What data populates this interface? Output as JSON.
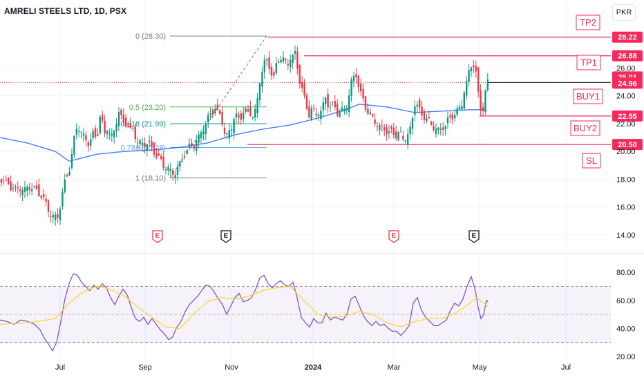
{
  "header": {
    "title": "AMRELI STEELS LTD, 1D, PSX",
    "currency": "PKR"
  },
  "chart_data": {
    "type": "candlestick",
    "price_axis": {
      "ticks": [
        "14.00",
        "16.00",
        "18.00",
        "20.00",
        "22.00",
        "24.00",
        "26.00"
      ],
      "ylim": [
        13.4,
        29.4
      ]
    },
    "rsi_axis": {
      "ticks": [
        "20.00",
        "40.00",
        "60.00",
        "80.00"
      ],
      "ylim": [
        17,
        88
      ],
      "bands": [
        30,
        50,
        70
      ]
    },
    "x_axis": {
      "ticks": [
        "Jul",
        "Sep",
        "Nov",
        "2024",
        "Mar",
        "May",
        "Jul"
      ]
    },
    "price_path": [
      [
        0,
        18.1
      ],
      [
        8,
        17.7
      ],
      [
        18,
        17.4
      ],
      [
        24,
        17.2
      ],
      [
        30,
        17.4
      ],
      [
        36,
        17.2
      ],
      [
        44,
        17.5
      ],
      [
        52,
        17.2
      ],
      [
        60,
        16.8
      ],
      [
        66,
        16.3
      ],
      [
        72,
        15.6
      ],
      [
        78,
        15.2
      ],
      [
        84,
        15.4
      ],
      [
        88,
        16.3
      ],
      [
        92,
        17.4
      ],
      [
        96,
        18.2
      ],
      [
        100,
        18.6
      ],
      [
        104,
        19.7
      ],
      [
        108,
        21.1
      ],
      [
        112,
        22.0
      ],
      [
        116,
        21.5
      ],
      [
        120,
        21.1
      ],
      [
        124,
        20.9
      ],
      [
        128,
        20.6
      ],
      [
        132,
        20.9
      ],
      [
        136,
        21.4
      ],
      [
        140,
        20.7
      ],
      [
        144,
        22.6
      ],
      [
        148,
        22.0
      ],
      [
        152,
        21.2
      ],
      [
        156,
        21.9
      ],
      [
        160,
        20.9
      ],
      [
        164,
        21.2
      ],
      [
        168,
        22.1
      ],
      [
        172,
        22.9
      ],
      [
        176,
        22.3
      ],
      [
        180,
        21.9
      ],
      [
        184,
        22.1
      ],
      [
        188,
        21.4
      ],
      [
        192,
        21.6
      ],
      [
        196,
        21.1
      ],
      [
        200,
        20.6
      ],
      [
        204,
        20.6
      ],
      [
        208,
        20.4
      ],
      [
        212,
        20.7
      ],
      [
        216,
        20.6
      ],
      [
        220,
        20.1
      ],
      [
        224,
        19.9
      ],
      [
        228,
        19.6
      ],
      [
        232,
        19.4
      ],
      [
        236,
        19.0
      ],
      [
        240,
        18.9
      ],
      [
        244,
        18.7
      ],
      [
        248,
        18.5
      ],
      [
        252,
        18.4
      ],
      [
        256,
        18.7
      ],
      [
        260,
        19.0
      ],
      [
        264,
        19.6
      ],
      [
        268,
        19.9
      ],
      [
        272,
        20.1
      ],
      [
        276,
        20.5
      ],
      [
        280,
        20.4
      ],
      [
        284,
        20.7
      ],
      [
        288,
        21.0
      ],
      [
        292,
        21.5
      ],
      [
        296,
        21.8
      ],
      [
        300,
        22.2
      ],
      [
        304,
        22.7
      ],
      [
        308,
        22.9
      ],
      [
        312,
        23.1
      ],
      [
        316,
        22.6
      ],
      [
        320,
        22.7
      ],
      [
        324,
        21.4
      ],
      [
        328,
        21.0
      ],
      [
        332,
        21.5
      ],
      [
        336,
        21.9
      ],
      [
        340,
        22.7
      ],
      [
        344,
        22.3
      ],
      [
        348,
        22.4
      ],
      [
        352,
        22.9
      ],
      [
        356,
        22.6
      ],
      [
        360,
        23.0
      ],
      [
        364,
        22.6
      ],
      [
        368,
        22.6
      ],
      [
        372,
        23.4
      ],
      [
        376,
        25.1
      ],
      [
        380,
        26.0
      ],
      [
        384,
        26.6
      ],
      [
        388,
        26.3
      ],
      [
        392,
        25.8
      ],
      [
        396,
        25.2
      ],
      [
        400,
        26.2
      ],
      [
        404,
        26.6
      ],
      [
        408,
        26.9
      ],
      [
        412,
        26.4
      ],
      [
        416,
        26.2
      ],
      [
        420,
        26.8
      ],
      [
        424,
        26.9
      ],
      [
        428,
        27.0
      ],
      [
        432,
        25.4
      ],
      [
        436,
        24.8
      ],
      [
        440,
        23.9
      ],
      [
        444,
        23.1
      ],
      [
        448,
        22.6
      ],
      [
        452,
        23.3
      ],
      [
        456,
        22.4
      ],
      [
        460,
        22.9
      ],
      [
        464,
        22.9
      ],
      [
        468,
        23.3
      ],
      [
        472,
        24.0
      ],
      [
        476,
        23.1
      ],
      [
        480,
        23.4
      ],
      [
        484,
        23.2
      ],
      [
        488,
        22.8
      ],
      [
        492,
        23.0
      ],
      [
        496,
        22.9
      ],
      [
        500,
        23.0
      ],
      [
        504,
        23.8
      ],
      [
        508,
        24.9
      ],
      [
        512,
        25.3
      ],
      [
        516,
        25.6
      ],
      [
        520,
        24.4
      ],
      [
        524,
        23.9
      ],
      [
        528,
        23.3
      ],
      [
        532,
        22.9
      ],
      [
        536,
        22.6
      ],
      [
        540,
        22.3
      ],
      [
        544,
        22.1
      ],
      [
        548,
        21.8
      ],
      [
        552,
        21.6
      ],
      [
        556,
        21.7
      ],
      [
        560,
        21.4
      ],
      [
        564,
        21.3
      ],
      [
        568,
        21.5
      ],
      [
        572,
        21.1
      ],
      [
        576,
        21.3
      ],
      [
        580,
        21.2
      ],
      [
        584,
        20.9
      ],
      [
        588,
        21.1
      ],
      [
        592,
        21.2
      ],
      [
        596,
        22.1
      ],
      [
        600,
        23.5
      ],
      [
        604,
        23.3
      ],
      [
        608,
        22.8
      ],
      [
        612,
        22.5
      ],
      [
        616,
        22.5
      ],
      [
        620,
        22.2
      ],
      [
        624,
        21.9
      ],
      [
        628,
        21.8
      ],
      [
        632,
        21.6
      ],
      [
        636,
        21.4
      ],
      [
        640,
        21.8
      ],
      [
        644,
        21.8
      ],
      [
        648,
        22.2
      ],
      [
        652,
        22.4
      ],
      [
        656,
        22.6
      ],
      [
        660,
        22.8
      ],
      [
        664,
        23.0
      ],
      [
        668,
        23.4
      ],
      [
        672,
        24.4
      ],
      [
        676,
        25.0
      ],
      [
        680,
        26.1
      ],
      [
        684,
        26.4
      ],
      [
        688,
        25.9
      ],
      [
        692,
        24.2
      ],
      [
        696,
        23.0
      ],
      [
        700,
        23.1
      ],
      [
        704,
        24.9
      ],
      [
        706,
        25.0
      ]
    ],
    "ma_path": [
      [
        0,
        21.0
      ],
      [
        40,
        20.6
      ],
      [
        80,
        20.0
      ],
      [
        100,
        19.3
      ],
      [
        140,
        19.8
      ],
      [
        180,
        20.0
      ],
      [
        220,
        20.1
      ],
      [
        260,
        20.3
      ],
      [
        300,
        20.6
      ],
      [
        340,
        21.2
      ],
      [
        380,
        21.6
      ],
      [
        420,
        21.9
      ],
      [
        460,
        22.4
      ],
      [
        500,
        23.0
      ],
      [
        520,
        23.4
      ],
      [
        560,
        23.2
      ],
      [
        600,
        22.8
      ],
      [
        640,
        22.9
      ],
      [
        680,
        23.0
      ],
      [
        704,
        23.0
      ]
    ],
    "rsi_path": [
      [
        0,
        46
      ],
      [
        10,
        45
      ],
      [
        20,
        43
      ],
      [
        30,
        46
      ],
      [
        40,
        45
      ],
      [
        50,
        43
      ],
      [
        58,
        39
      ],
      [
        64,
        33
      ],
      [
        70,
        29
      ],
      [
        76,
        24
      ],
      [
        82,
        30
      ],
      [
        88,
        45
      ],
      [
        94,
        61
      ],
      [
        100,
        72
      ],
      [
        106,
        79
      ],
      [
        112,
        78
      ],
      [
        118,
        73
      ],
      [
        124,
        70
      ],
      [
        130,
        67
      ],
      [
        136,
        71
      ],
      [
        142,
        68
      ],
      [
        148,
        72
      ],
      [
        154,
        69
      ],
      [
        160,
        62
      ],
      [
        166,
        57
      ],
      [
        172,
        63
      ],
      [
        178,
        68
      ],
      [
        184,
        64
      ],
      [
        190,
        55
      ],
      [
        196,
        47
      ],
      [
        202,
        45
      ],
      [
        208,
        48
      ],
      [
        214,
        43
      ],
      [
        220,
        47
      ],
      [
        226,
        43
      ],
      [
        232,
        39
      ],
      [
        238,
        36
      ],
      [
        244,
        32
      ],
      [
        250,
        34
      ],
      [
        256,
        41
      ],
      [
        262,
        45
      ],
      [
        268,
        52
      ],
      [
        274,
        57
      ],
      [
        280,
        60
      ],
      [
        286,
        63
      ],
      [
        292,
        67
      ],
      [
        298,
        71
      ],
      [
        304,
        70
      ],
      [
        310,
        66
      ],
      [
        316,
        61
      ],
      [
        322,
        57
      ],
      [
        328,
        50
      ],
      [
        334,
        56
      ],
      [
        340,
        62
      ],
      [
        346,
        65
      ],
      [
        352,
        59
      ],
      [
        358,
        60
      ],
      [
        364,
        62
      ],
      [
        370,
        68
      ],
      [
        376,
        76
      ],
      [
        382,
        78
      ],
      [
        388,
        72
      ],
      [
        394,
        69
      ],
      [
        400,
        72
      ],
      [
        406,
        74
      ],
      [
        412,
        71
      ],
      [
        418,
        70
      ],
      [
        424,
        73
      ],
      [
        430,
        62
      ],
      [
        436,
        48
      ],
      [
        442,
        44
      ],
      [
        448,
        41
      ],
      [
        454,
        47
      ],
      [
        460,
        44
      ],
      [
        466,
        44
      ],
      [
        472,
        51
      ],
      [
        478,
        46
      ],
      [
        484,
        48
      ],
      [
        490,
        47
      ],
      [
        496,
        46
      ],
      [
        502,
        50
      ],
      [
        508,
        61
      ],
      [
        514,
        63
      ],
      [
        520,
        56
      ],
      [
        526,
        49
      ],
      [
        532,
        45
      ],
      [
        538,
        42
      ],
      [
        544,
        45
      ],
      [
        550,
        42
      ],
      [
        556,
        43
      ],
      [
        562,
        40
      ],
      [
        568,
        38
      ],
      [
        574,
        38
      ],
      [
        580,
        35
      ],
      [
        586,
        38
      ],
      [
        592,
        42
      ],
      [
        598,
        58
      ],
      [
        604,
        62
      ],
      [
        610,
        53
      ],
      [
        616,
        48
      ],
      [
        622,
        45
      ],
      [
        628,
        42
      ],
      [
        634,
        42
      ],
      [
        640,
        44
      ],
      [
        646,
        46
      ],
      [
        652,
        53
      ],
      [
        658,
        58
      ],
      [
        664,
        56
      ],
      [
        670,
        61
      ],
      [
        676,
        70
      ],
      [
        682,
        77
      ],
      [
        688,
        67
      ],
      [
        692,
        55
      ],
      [
        696,
        47
      ],
      [
        700,
        50
      ],
      [
        704,
        60
      ],
      [
        706,
        59
      ]
    ],
    "rsi_ma_path": [
      [
        0,
        43
      ],
      [
        40,
        44
      ],
      [
        80,
        47
      ],
      [
        100,
        58
      ],
      [
        120,
        66
      ],
      [
        140,
        70
      ],
      [
        160,
        68
      ],
      [
        180,
        63
      ],
      [
        200,
        55
      ],
      [
        220,
        48
      ],
      [
        240,
        41
      ],
      [
        260,
        40
      ],
      [
        280,
        50
      ],
      [
        300,
        59
      ],
      [
        320,
        62
      ],
      [
        340,
        61
      ],
      [
        360,
        63
      ],
      [
        380,
        67
      ],
      [
        400,
        69
      ],
      [
        420,
        70
      ],
      [
        440,
        60
      ],
      [
        460,
        50
      ],
      [
        480,
        48
      ],
      [
        500,
        49
      ],
      [
        520,
        52
      ],
      [
        540,
        50
      ],
      [
        560,
        44
      ],
      [
        580,
        41
      ],
      [
        600,
        45
      ],
      [
        620,
        47
      ],
      [
        640,
        47
      ],
      [
        660,
        51
      ],
      [
        680,
        58
      ],
      [
        690,
        62
      ],
      [
        700,
        58
      ],
      [
        706,
        56
      ]
    ],
    "fib_levels": [
      {
        "label": "0 (28.30)",
        "value": 28.3,
        "color": "#787b86"
      },
      {
        "label": "0.5 (23.20)",
        "value": 23.2,
        "color": "#4caf50"
      },
      {
        "label": "0.618 (21.99)",
        "value": 21.99,
        "color": "#089981"
      },
      {
        "label": "0.786 (20.28)",
        "value": 20.28,
        "color": "#64b5f6"
      },
      {
        "label": "1 (18.10)",
        "value": 18.1,
        "color": "#787b86"
      }
    ],
    "level_lines": [
      {
        "value": 28.22,
        "label": "28.22"
      },
      {
        "value": 26.88,
        "label": "26.88"
      },
      {
        "value": 22.55,
        "label": "22.55"
      },
      {
        "value": 20.5,
        "label": "20.50"
      }
    ],
    "current_price": {
      "value": 24.96,
      "label": "24.96"
    },
    "high_price": {
      "value": 25.01,
      "label": "25.01"
    },
    "annotations": [
      "TP2",
      "TP1",
      "BUY1",
      "BUY2",
      "SL"
    ],
    "earnings_markers": [
      {
        "label": "E",
        "color": "#f23645"
      },
      {
        "label": "E",
        "color": "#131722"
      },
      {
        "label": "E",
        "color": "#f23645"
      },
      {
        "label": "E",
        "color": "#131722"
      }
    ],
    "colors": {
      "up": "#089981",
      "down": "#f23645",
      "ma": "#2962ff",
      "rsi": "#7e57c2",
      "rsi_ma": "#fdd835",
      "level": "#f7285a"
    }
  }
}
